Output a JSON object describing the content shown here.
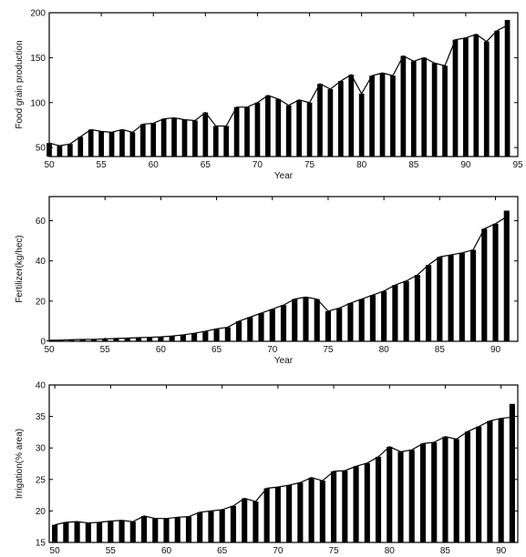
{
  "chart_data": [
    {
      "type": "bar",
      "xlabel": "Year",
      "ylabel": "Food grain production",
      "xlim": [
        50,
        95
      ],
      "ylim": [
        40,
        200
      ],
      "xticks": [
        50,
        55,
        60,
        65,
        70,
        75,
        80,
        85,
        90,
        95
      ],
      "yticks": [
        50,
        100,
        150,
        200
      ],
      "x": [
        50,
        51,
        52,
        53,
        54,
        55,
        56,
        57,
        58,
        59,
        60,
        61,
        62,
        63,
        64,
        65,
        66,
        67,
        68,
        69,
        70,
        71,
        72,
        73,
        74,
        75,
        76,
        77,
        78,
        79,
        80,
        81,
        82,
        83,
        84,
        85,
        86,
        87,
        88,
        89,
        90,
        91,
        92,
        93,
        94
      ],
      "values": [
        55,
        52,
        54,
        62,
        70,
        68,
        67,
        70,
        67,
        76,
        77,
        82,
        83,
        81,
        80,
        89,
        74,
        74,
        95,
        95,
        100,
        108,
        104,
        97,
        103,
        100,
        121,
        115,
        124,
        131,
        110,
        130,
        133,
        130,
        152,
        146,
        150,
        144,
        141,
        170,
        172,
        176,
        168,
        180,
        186
      ],
      "values_top": [
        null,
        null,
        null,
        null,
        null,
        null,
        null,
        null,
        null,
        null,
        null,
        null,
        null,
        null,
        null,
        null,
        null,
        null,
        null,
        null,
        null,
        null,
        null,
        null,
        null,
        null,
        null,
        null,
        null,
        null,
        null,
        null,
        null,
        null,
        null,
        null,
        null,
        null,
        null,
        null,
        null,
        null,
        null,
        null,
        192
      ]
    },
    {
      "type": "bar",
      "xlabel": "Year",
      "ylabel": "Fertilizer(kg/hec)",
      "xlim": [
        50,
        92
      ],
      "ylim": [
        0,
        72
      ],
      "xticks": [
        50,
        55,
        60,
        65,
        70,
        75,
        80,
        85,
        90
      ],
      "yticks": [
        0,
        20,
        40,
        60
      ],
      "x": [
        50,
        51,
        52,
        53,
        54,
        55,
        56,
        57,
        58,
        59,
        60,
        61,
        62,
        63,
        64,
        65,
        66,
        67,
        68,
        69,
        70,
        71,
        72,
        73,
        74,
        75,
        76,
        77,
        78,
        79,
        80,
        81,
        82,
        83,
        84,
        85,
        86,
        87,
        88,
        89,
        90,
        91
      ],
      "values": [
        0.5,
        0.6,
        0.8,
        0.9,
        1.0,
        1.2,
        1.4,
        1.6,
        1.8,
        2.0,
        2.2,
        2.6,
        3.2,
        4.0,
        5.0,
        6.2,
        7.0,
        10.0,
        12.0,
        14.0,
        16.0,
        18.0,
        21.0,
        22.0,
        21.0,
        15.0,
        16.5,
        19.0,
        21.0,
        23.0,
        25.0,
        28.0,
        30.0,
        33.0,
        38.0,
        42.0,
        43.0,
        44.0,
        45.5,
        56.0,
        58.5,
        62.0
      ],
      "values_top": [
        null,
        null,
        null,
        null,
        null,
        null,
        null,
        null,
        null,
        null,
        null,
        null,
        null,
        null,
        null,
        null,
        null,
        null,
        null,
        null,
        null,
        null,
        null,
        null,
        null,
        null,
        null,
        null,
        null,
        null,
        null,
        null,
        null,
        null,
        null,
        null,
        null,
        null,
        null,
        null,
        null,
        65
      ]
    },
    {
      "type": "bar",
      "xlabel": "Year",
      "ylabel": "Irrigation(% area)",
      "xlim": [
        49.5,
        91.5
      ],
      "ylim": [
        15,
        40
      ],
      "xticks": [
        50,
        55,
        60,
        65,
        70,
        75,
        80,
        85,
        90
      ],
      "yticks": [
        15,
        20,
        25,
        30,
        35,
        40
      ],
      "x": [
        50,
        51,
        52,
        53,
        54,
        55,
        56,
        57,
        58,
        59,
        60,
        61,
        62,
        63,
        64,
        65,
        66,
        67,
        68,
        69,
        70,
        71,
        72,
        73,
        74,
        75,
        76,
        77,
        78,
        79,
        80,
        81,
        82,
        83,
        84,
        85,
        86,
        87,
        88,
        89,
        90,
        91
      ],
      "values": [
        17.8,
        18.2,
        18.3,
        18.1,
        18.2,
        18.4,
        18.5,
        18.3,
        19.2,
        18.8,
        18.8,
        19.0,
        19.1,
        19.8,
        20.0,
        20.2,
        20.8,
        22.0,
        21.5,
        23.6,
        23.8,
        24.1,
        24.5,
        25.3,
        24.8,
        26.3,
        26.4,
        27.1,
        27.6,
        28.6,
        30.2,
        29.4,
        29.7,
        30.7,
        30.9,
        31.8,
        31.4,
        32.6,
        33.4,
        34.3,
        34.7,
        34.9
      ],
      "values_top": [
        null,
        null,
        null,
        null,
        null,
        null,
        null,
        null,
        null,
        null,
        null,
        null,
        null,
        null,
        null,
        null,
        null,
        null,
        null,
        null,
        null,
        null,
        null,
        null,
        null,
        null,
        null,
        null,
        null,
        null,
        null,
        null,
        null,
        null,
        null,
        null,
        null,
        null,
        null,
        null,
        null,
        37.0
      ]
    }
  ]
}
